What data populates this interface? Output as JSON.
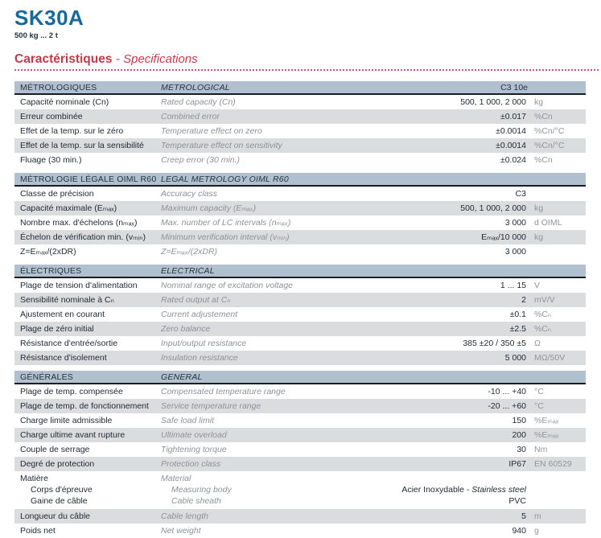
{
  "header": {
    "title": "SK30A",
    "range": "500 kg ... 2 t",
    "heading_fr": "Caractéristiques",
    "heading_en": "- Specifications"
  },
  "colors": {
    "title_blue": "#17699d",
    "accent_red": "#bf3a4b",
    "section_header_bg": "#b1c0cf",
    "row_alt_bg": "#dbdcde",
    "dark_text": "#1f2833",
    "gray_text": "#8d9298"
  },
  "table": {
    "sections": [
      {
        "header_fr": "MÉTROLOGIQUES",
        "header_en": "METROLOGICAL",
        "header_value": "C3 10e",
        "rows": [
          {
            "fr": "Capacité nominale (Cn)",
            "en": "Rated capacity (Cn)",
            "value": "500, 1 000, 2 000",
            "unit": "kg"
          },
          {
            "fr": "Erreur combinée",
            "en": "Combined error",
            "value": "±0.017",
            "unit": "%Cn"
          },
          {
            "fr": "Effet de la temp. sur le zéro",
            "en": "Temperature effect on zero",
            "value": "±0.0014",
            "unit": "%Cn/°C"
          },
          {
            "fr": "Effet de la temp. sur la sensibilité",
            "en": "Temperature effect on sensitivity",
            "value": "±0.0014",
            "unit": "%Cn/°C"
          },
          {
            "fr": "Fluage (30 min.)",
            "en": "Creep error (30 min.)",
            "value": "±0.024",
            "unit": "%Cn"
          }
        ]
      },
      {
        "header_fr": "MÉTROLOGIE LÉGALE OIML R60",
        "header_en": "LEGAL METROLOGY OIML R60",
        "header_value": "",
        "rows": [
          {
            "fr": "Classe de précision",
            "en": "Accuracy class",
            "value": "C3",
            "unit": ""
          },
          {
            "fr": "Capacité maximale (Eₘₐₓ)",
            "en": "Maximum capacity (Eₘₐₓ)",
            "value": "500, 1 000, 2 000",
            "unit": "kg"
          },
          {
            "fr": "Nombre max. d'échelons (nₘₐₓ)",
            "en": "Max. number of LC intervals (nₘₐₓ)",
            "value": "3 000",
            "unit": "d OIML"
          },
          {
            "fr": "Échelon de vérification min. (vₘᵢₙ)",
            "en": "Minimum verification interval (vₘᵢₙ)",
            "value": "Eₘₐₓ/10 000",
            "unit": "kg"
          },
          {
            "fr": "Z=Eₘₐₓ/(2xDR)",
            "en": "Z=Eₘₐₓ/(2xDR)",
            "value": "3 000",
            "unit": ""
          }
        ]
      },
      {
        "header_fr": "ÉLECTRIQUES",
        "header_en": "ELECTRICAL",
        "header_value": "",
        "rows": [
          {
            "fr": "Plage de tension d'alimentation",
            "en": "Nominal range of excitation voltage",
            "value": "1 ... 15",
            "unit": "V"
          },
          {
            "fr": "Sensibilité nominale à Cₙ",
            "en": "Rated output at Cₙ",
            "value": "2",
            "unit": "mV/V"
          },
          {
            "fr": "Ajustement en courant",
            "en": "Current adjustement",
            "value": "±0.1",
            "unit": "%Cₙ"
          },
          {
            "fr": "Plage de zéro initial",
            "en": "Zero balance",
            "value": "±2.5",
            "unit": "%Cₙ"
          },
          {
            "fr": "Résistance d'entrée/sortie",
            "en": "Input/output resistance",
            "value": "385 ±20 / 350 ±5",
            "unit": "Ω"
          },
          {
            "fr": "Résistance d'isolement",
            "en": "Insulation resistance",
            "value": "5 000",
            "unit": "MΩ/50V"
          }
        ]
      },
      {
        "header_fr": "GÉNÉRALES",
        "header_en": "GENERAL",
        "header_value": "",
        "rows": [
          {
            "fr": "Plage de temp. compensée",
            "en": "Compensated temperature range",
            "value": "-10 ... +40",
            "unit": "°C"
          },
          {
            "fr": "Plage de temp. de fonctionnement",
            "en": "Service temperature range",
            "value": "-20 ... +60",
            "unit": "°C"
          },
          {
            "fr": "Charge limite admissible",
            "en": "Safe load limit",
            "value": "150",
            "unit": "%Eₘₐₓ"
          },
          {
            "fr": "Charge ultime avant rupture",
            "en": "Ultimate overload",
            "value": "200",
            "unit": "%Eₘₐₓ"
          },
          {
            "fr": "Couple de serrage",
            "en": "Tightening torque",
            "value": "30",
            "unit": "Nm"
          },
          {
            "fr": "Degré de protection",
            "en": "Protection class",
            "value": "IP67",
            "unit": "EN 60529"
          }
        ],
        "material_row": {
          "fr_title": "Matière",
          "fr_item1": "Corps d'épreuve",
          "fr_item2": "Gaine de câble",
          "en_title": "Material",
          "en_item1": "Measuring body",
          "en_item2": "Cable sheath",
          "value1_main": "Acier Inoxydable - ",
          "value1_italic": "Stainless steel",
          "value2": "PVC"
        },
        "rows_after": [
          {
            "fr": "Longueur du câble",
            "en": "Cable length",
            "value": "5",
            "unit": "m"
          },
          {
            "fr": "Poids net",
            "en": "Net weight",
            "value": "940",
            "unit": "g"
          }
        ]
      }
    ]
  }
}
